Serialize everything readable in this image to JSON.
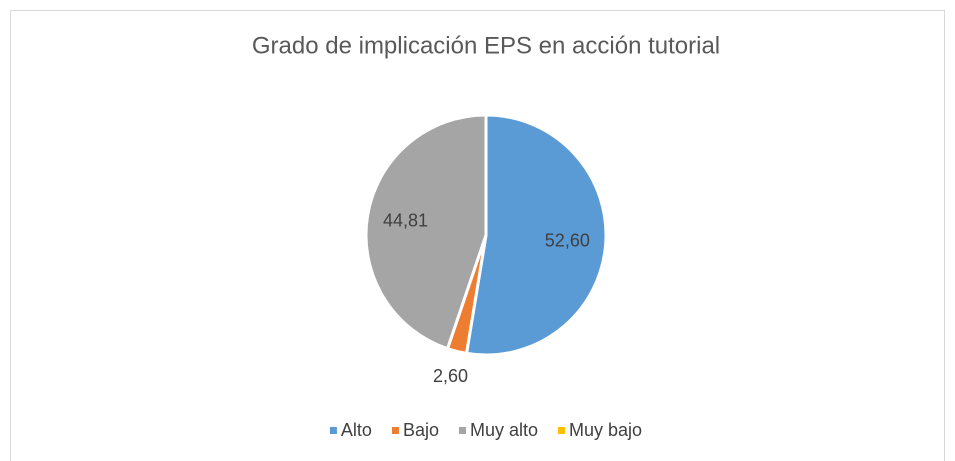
{
  "chart_data": {
    "type": "pie",
    "title": "Grado de implicación EPS en acción tutorial",
    "categories": [
      "Alto",
      "Bajo",
      "Muy alto",
      "Muy bajo"
    ],
    "values": [
      52.6,
      2.6,
      44.81,
      0
    ],
    "value_labels": [
      "52,60",
      "2,60",
      "44,81",
      null
    ],
    "colors": [
      "#5b9bd5",
      "#ed7d31",
      "#a5a5a5",
      "#ffc000"
    ],
    "legend": "bottom"
  }
}
